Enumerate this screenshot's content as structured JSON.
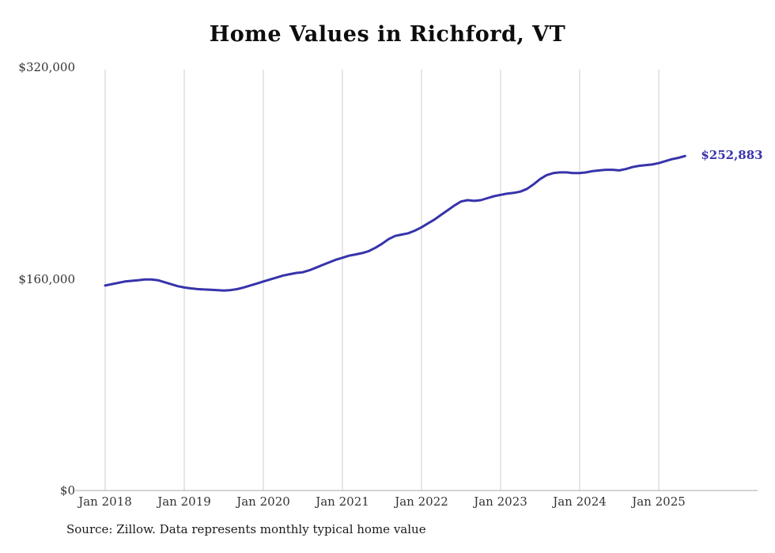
{
  "title": "Home Values in Richford, VT",
  "source_note": "Source: Zillow. Data represents monthly typical home value",
  "end_label": "$252,883",
  "colors": {
    "line": "#3733ab",
    "grid": "#cccccc",
    "axis": "#aaaaaa",
    "text": "#333333",
    "end_label": "#3733ab"
  },
  "chart_data": {
    "type": "line",
    "title": "Home Values in Richford, VT",
    "x_start": "Jan 2018",
    "x_end": "May 2025",
    "x_tick_labels": [
      "Jan 2018",
      "Jan 2019",
      "Jan 2020",
      "Jan 2021",
      "Jan 2022",
      "Jan 2023",
      "Jan 2024",
      "Jan 2025"
    ],
    "y_ticks": [
      {
        "value": 0,
        "label": "$0"
      },
      {
        "value": 160000,
        "label": "$160,000"
      },
      {
        "value": 320000,
        "label": "$320,000"
      }
    ],
    "ylim": [
      0,
      320000
    ],
    "grid": "vertical-only",
    "legend": "none",
    "final_value": 252883,
    "series": [
      {
        "name": "Monthly typical home value",
        "values": [
          155000,
          156000,
          157000,
          158000,
          158500,
          159000,
          159500,
          159500,
          159000,
          157500,
          156000,
          154500,
          153500,
          152800,
          152300,
          152000,
          151800,
          151500,
          151200,
          151500,
          152200,
          153500,
          155000,
          156500,
          158000,
          159500,
          161000,
          162500,
          163500,
          164500,
          165000,
          166500,
          168500,
          170500,
          172500,
          174500,
          176000,
          177500,
          178500,
          179500,
          181000,
          183500,
          186500,
          190000,
          192500,
          193500,
          194500,
          196500,
          199000,
          202000,
          205000,
          208500,
          212000,
          215500,
          218500,
          219500,
          219000,
          219500,
          221000,
          222500,
          223500,
          224500,
          225000,
          226000,
          228000,
          231500,
          235500,
          238500,
          240000,
          240500,
          240500,
          240000,
          240000,
          240500,
          241500,
          242000,
          242500,
          242500,
          242000,
          243000,
          244500,
          245500,
          246000,
          246500,
          247500,
          249000,
          250500,
          251500,
          252883
        ]
      }
    ]
  }
}
